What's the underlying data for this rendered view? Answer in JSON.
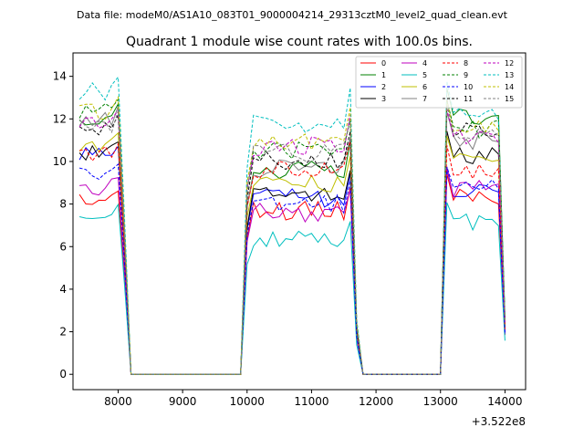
{
  "header": {
    "data_file": "Data file: modeM0/AS1A10_083T01_9000004214_29313cztM0_level2_quad_clean.evt"
  },
  "chart_data": {
    "type": "line",
    "title": "Quadrant 1 module wise count rates with 100.0s bins.",
    "xlabel": "",
    "ylabel": "",
    "xlim": [
      7300,
      14320
    ],
    "ylim": [
      -0.72,
      15.1
    ],
    "x_offset_label": "+3.522e8",
    "x_ticks": [
      8000,
      9000,
      10000,
      11000,
      12000,
      13000,
      14000
    ],
    "x_tick_labels": [
      "8000",
      "9000",
      "10000",
      "11000",
      "12000",
      "13000",
      "14000"
    ],
    "y_ticks": [
      0,
      2,
      4,
      6,
      8,
      10,
      12,
      14
    ],
    "y_tick_labels": [
      "0",
      "2",
      "4",
      "6",
      "8",
      "10",
      "12",
      "14"
    ],
    "grid": false,
    "legend_position": "top-right",
    "legend_columns": 4,
    "segments": [
      {
        "start": 7400,
        "step": 100,
        "count": 8
      },
      {
        "start": 9900,
        "step": 100,
        "count": 19
      },
      {
        "start": 13000,
        "step": 100,
        "count": 11
      }
    ],
    "zero_gaps": [
      [
        8200,
        9900
      ],
      [
        11800,
        13000
      ]
    ],
    "series": [
      {
        "name": "0",
        "color": "#ff0000",
        "dash": "solid",
        "levels": [
          8.2,
          7.7,
          8.4
        ]
      },
      {
        "name": "1",
        "color": "#008000",
        "dash": "solid",
        "levels": [
          12.1,
          9.6,
          12.0
        ]
      },
      {
        "name": "2",
        "color": "#0000ff",
        "dash": "solid",
        "levels": [
          10.2,
          8.3,
          8.6
        ]
      },
      {
        "name": "3",
        "color": "#000000",
        "dash": "solid",
        "levels": [
          10.4,
          8.4,
          10.2
        ]
      },
      {
        "name": "4",
        "color": "#bf00bf",
        "dash": "solid",
        "levels": [
          8.8,
          7.6,
          8.7
        ]
      },
      {
        "name": "5",
        "color": "#00bfbf",
        "dash": "solid",
        "levels": [
          7.6,
          6.3,
          7.2
        ]
      },
      {
        "name": "6",
        "color": "#bfbf00",
        "dash": "solid",
        "levels": [
          10.8,
          9.0,
          10.0
        ]
      },
      {
        "name": "7",
        "color": "#808080",
        "dash": "solid",
        "levels": [
          12.0,
          9.7,
          11.0
        ]
      },
      {
        "name": "8",
        "color": "#ff0000",
        "dash": "dashed",
        "levels": [
          10.3,
          9.6,
          9.6
        ]
      },
      {
        "name": "9",
        "color": "#008000",
        "dash": "dashed",
        "levels": [
          12.3,
          10.5,
          11.5
        ]
      },
      {
        "name": "10",
        "color": "#0000ff",
        "dash": "dashed",
        "levels": [
          9.4,
          8.0,
          8.7
        ]
      },
      {
        "name": "11",
        "color": "#000000",
        "dash": "dashed",
        "levels": [
          11.6,
          10.0,
          11.6
        ]
      },
      {
        "name": "12",
        "color": "#bf00bf",
        "dash": "dashed",
        "levels": [
          11.8,
          10.7,
          11.1
        ]
      },
      {
        "name": "13",
        "color": "#00bfbf",
        "dash": "dashed",
        "levels": [
          13.3,
          11.8,
          12.3
        ]
      },
      {
        "name": "14",
        "color": "#bfbf00",
        "dash": "dashed",
        "levels": [
          12.4,
          11.0,
          11.5
        ]
      },
      {
        "name": "15",
        "color": "#808080",
        "dash": "dashed",
        "levels": [
          11.8,
          10.4,
          11.3
        ]
      }
    ]
  }
}
